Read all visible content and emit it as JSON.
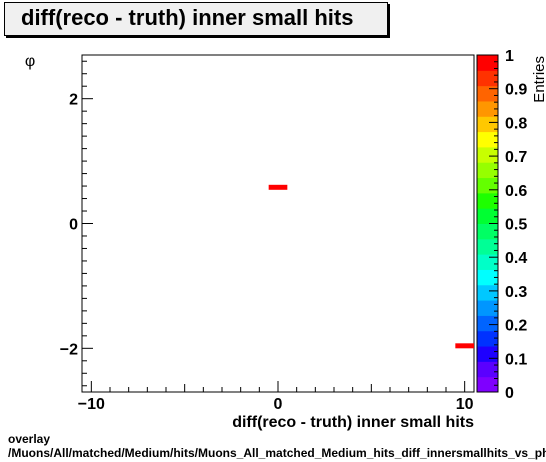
{
  "chart_data": {
    "type": "heatmap",
    "title": "diff(reco - truth) inner small hits",
    "xlabel": "diff(reco - truth) inner small hits",
    "ylabel": "φ",
    "zlabel": "Entries",
    "xlim": [
      -10.5,
      10.5
    ],
    "ylim": [
      -2.7,
      2.7
    ],
    "zlim": [
      0,
      1
    ],
    "x_ticks": [
      -10,
      0,
      10
    ],
    "x_tick_labels": [
      "−10",
      "0",
      "10"
    ],
    "y_ticks": [
      -2,
      0,
      2
    ],
    "y_tick_labels": [
      "−2",
      "0",
      "2"
    ],
    "z_ticks": [
      0,
      0.1,
      0.2,
      0.3,
      0.4,
      0.5,
      0.6,
      0.7,
      0.8,
      0.9,
      1
    ],
    "z_tick_labels": [
      "0",
      "0.1",
      "0.2",
      "0.3",
      "0.4",
      "0.5",
      "0.6",
      "0.7",
      "0.8",
      "0.9",
      "1"
    ],
    "cells": [
      {
        "x0": -0.5,
        "x1": 0.5,
        "y0": 0.54,
        "y1": 0.62,
        "value": 1
      },
      {
        "x0": 9.5,
        "x1": 10.5,
        "y0": -2.0,
        "y1": -1.92,
        "value": 1
      }
    ],
    "palette": [
      "#7f00ff",
      "#5a00ff",
      "#1e00ff",
      "#0032ff",
      "#0064ff",
      "#0096ff",
      "#00c8ff",
      "#00ffff",
      "#00ffc8",
      "#00ff96",
      "#00ff64",
      "#00ff32",
      "#1eff00",
      "#64ff00",
      "#96ff00",
      "#c8ff00",
      "#ffff00",
      "#ffc800",
      "#ff9600",
      "#ff6400",
      "#ff3200",
      "#ff0000"
    ],
    "grid": false
  },
  "footer": {
    "line1": "overlay",
    "line2": "/Muons/All/matched/Medium/hits/Muons_All_matched_Medium_hits_diff_innersmallhits_vs_phi"
  }
}
